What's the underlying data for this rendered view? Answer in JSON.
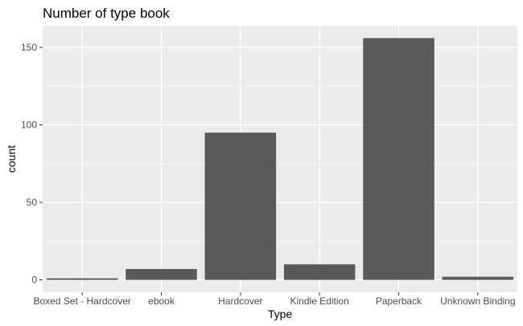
{
  "chart_data": {
    "type": "bar",
    "title": "Number of type book",
    "xlabel": "Type",
    "ylabel": "count",
    "categories": [
      "Boxed Set - Hardcover",
      "ebook",
      "Hardcover",
      "Kindle Edition",
      "Paperback",
      "Unknown Binding"
    ],
    "values": [
      1,
      7,
      95,
      10,
      156,
      2
    ],
    "ylim": [
      -8,
      164
    ],
    "yticks": [
      0,
      50,
      100,
      150
    ],
    "ytick_labels": [
      "0",
      "50",
      "100",
      "150"
    ],
    "grid": true,
    "legend": "none",
    "colors": {
      "bar": "#595959",
      "panel": "#ebebeb",
      "grid_major": "#ffffff",
      "grid_minor": "#f5f5f5",
      "tick_text": "#4d4d4d",
      "tick_mark": "#333333"
    }
  }
}
